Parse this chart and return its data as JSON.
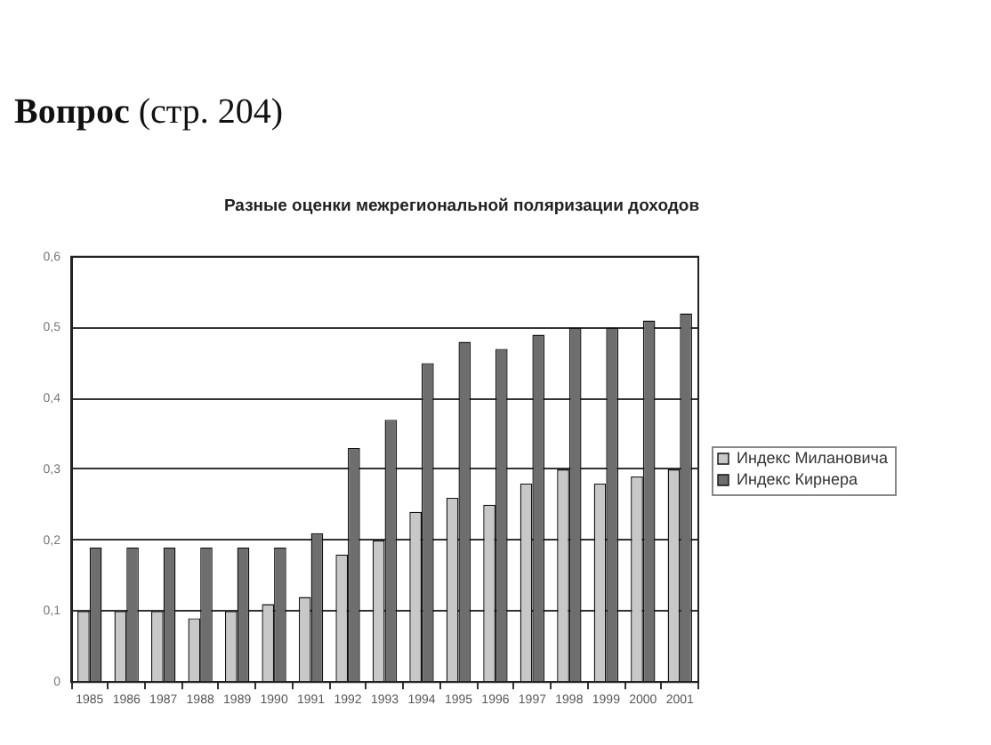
{
  "chart_data": {
    "type": "bar",
    "title": "Разные оценки межрегиональной поляризации доходов",
    "annotations": [
      "Вопрос (стр. 204)"
    ],
    "categories": [
      "1985",
      "1986",
      "1987",
      "1988",
      "1989",
      "1990",
      "1991",
      "1992",
      "1993",
      "1994",
      "1995",
      "1996",
      "1997",
      "1998",
      "1999",
      "2000",
      "2001"
    ],
    "series": [
      {
        "name": "Индекс Милановича",
        "color": "#c8c8c8",
        "values": [
          0.1,
          0.1,
          0.1,
          0.09,
          0.1,
          0.11,
          0.12,
          0.18,
          0.2,
          0.24,
          0.26,
          0.25,
          0.28,
          0.3,
          0.28,
          0.29,
          0.3
        ]
      },
      {
        "name": "Индекс Кирнера",
        "color": "#6e6e6e",
        "values": [
          0.19,
          0.19,
          0.19,
          0.19,
          0.19,
          0.19,
          0.21,
          0.33,
          0.37,
          0.45,
          0.48,
          0.47,
          0.49,
          0.5,
          0.5,
          0.51,
          0.52
        ]
      }
    ],
    "ylim": [
      0,
      0.6
    ],
    "yticks": [
      0,
      {
        "value": 0.1,
        "label": "0,1"
      },
      {
        "value": 0.2,
        "label": "0,2"
      },
      {
        "value": 0.3,
        "label": "0,3"
      },
      {
        "value": 0.4,
        "label": "0,4"
      },
      {
        "value": 0.5,
        "label": "0,5"
      },
      {
        "value": 0.6,
        "label": "0,6"
      }
    ],
    "grid": "y",
    "legend": "right"
  }
}
